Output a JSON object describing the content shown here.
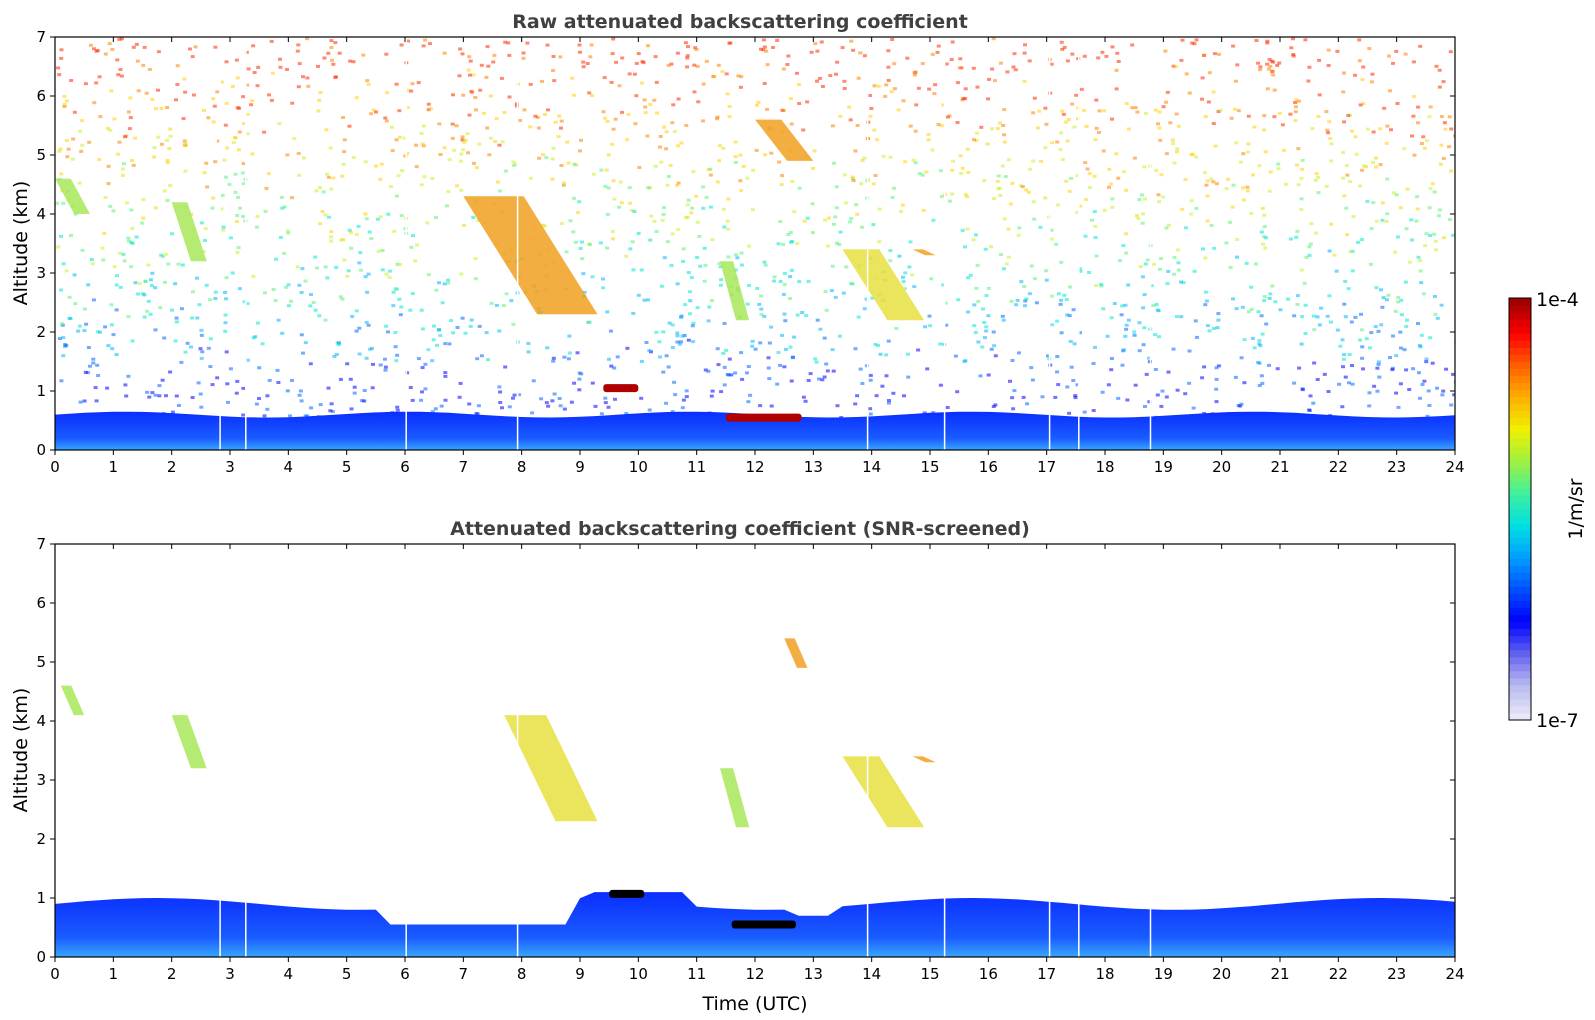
{
  "chart_data": [
    {
      "type": "heatmap",
      "panel": "raw",
      "title": "Raw attenuated backscattering coefficient",
      "xlabel": "",
      "ylabel": "Altitude (km)",
      "xlim": [
        0,
        24
      ],
      "ylim": [
        0,
        7
      ],
      "xticks": [
        0,
        1,
        2,
        3,
        4,
        5,
        6,
        7,
        8,
        9,
        10,
        11,
        12,
        13,
        14,
        15,
        16,
        17,
        18,
        19,
        20,
        21,
        22,
        23,
        24
      ],
      "yticks": [
        0,
        1,
        2,
        3,
        4,
        5,
        6,
        7
      ],
      "gap_lines_hours": [
        2.83,
        3.27,
        6.02,
        7.93,
        13.93,
        15.25,
        17.05,
        17.55,
        18.78
      ],
      "features": [
        {
          "kind": "boundary_layer",
          "altitude_top_km": 0.6,
          "level": "blue"
        },
        {
          "kind": "cloud",
          "t": [
            9.4,
            10.0
          ],
          "alt_km": 1.05,
          "level": "dark-red"
        },
        {
          "kind": "cloud",
          "t": [
            11.5,
            12.8
          ],
          "alt_km": 0.55,
          "level": "dark-red"
        },
        {
          "kind": "aerosol_streak",
          "t": [
            0.0,
            0.6
          ],
          "alt_km": [
            4.0,
            4.6
          ],
          "level": "yellow-green"
        },
        {
          "kind": "aerosol_streak",
          "t": [
            2.0,
            2.6
          ],
          "alt_km": [
            3.2,
            4.2
          ],
          "level": "yellow-green"
        },
        {
          "kind": "aerosol_streak",
          "t": [
            7.0,
            9.3
          ],
          "alt_km": [
            2.3,
            4.3
          ],
          "level": "orange"
        },
        {
          "kind": "aerosol_streak",
          "t": [
            11.4,
            11.9
          ],
          "alt_km": [
            2.2,
            3.2
          ],
          "level": "yellow-green"
        },
        {
          "kind": "aerosol_streak",
          "t": [
            13.5,
            14.9
          ],
          "alt_km": [
            2.2,
            3.4
          ],
          "level": "yellow"
        },
        {
          "kind": "aerosol_streak",
          "t": [
            14.7,
            15.1
          ],
          "alt_km": [
            3.3,
            3.4
          ],
          "level": "orange"
        },
        {
          "kind": "aerosol_streak",
          "t": [
            12.0,
            13.0
          ],
          "alt_km": [
            4.9,
            5.6
          ],
          "level": "orange"
        }
      ]
    },
    {
      "type": "heatmap",
      "panel": "screened",
      "title": "Attenuated backscattering coefficient (SNR-screened)",
      "xlabel": "Time (UTC)",
      "ylabel": "Altitude (km)",
      "xlim": [
        0,
        24
      ],
      "ylim": [
        0,
        7
      ],
      "xticks": [
        0,
        1,
        2,
        3,
        4,
        5,
        6,
        7,
        8,
        9,
        10,
        11,
        12,
        13,
        14,
        15,
        16,
        17,
        18,
        19,
        20,
        21,
        22,
        23,
        24
      ],
      "yticks": [
        0,
        1,
        2,
        3,
        4,
        5,
        6,
        7
      ],
      "gap_lines_hours": [
        2.83,
        3.27,
        6.02,
        7.93,
        13.93,
        15.25,
        17.05,
        17.55,
        18.78
      ],
      "features": [
        {
          "kind": "boundary_layer",
          "altitude_top_km": 0.9,
          "level": "blue"
        },
        {
          "kind": "cloud",
          "t": [
            9.5,
            10.1
          ],
          "alt_km": 1.07,
          "level": "black"
        },
        {
          "kind": "cloud",
          "t": [
            11.6,
            12.7
          ],
          "alt_km": 0.55,
          "level": "black"
        },
        {
          "kind": "aerosol_streak",
          "t": [
            0.1,
            0.5
          ],
          "alt_km": [
            4.1,
            4.6
          ],
          "level": "yellow-green"
        },
        {
          "kind": "aerosol_streak",
          "t": [
            2.0,
            2.6
          ],
          "alt_km": [
            3.2,
            4.1
          ],
          "level": "yellow-green"
        },
        {
          "kind": "aerosol_streak",
          "t": [
            7.7,
            9.3
          ],
          "alt_km": [
            2.3,
            4.1
          ],
          "level": "yellow"
        },
        {
          "kind": "aerosol_streak",
          "t": [
            11.4,
            11.9
          ],
          "alt_km": [
            2.2,
            3.2
          ],
          "level": "yellow-green"
        },
        {
          "kind": "aerosol_streak",
          "t": [
            13.5,
            14.9
          ],
          "alt_km": [
            2.2,
            3.4
          ],
          "level": "yellow"
        },
        {
          "kind": "aerosol_streak",
          "t": [
            14.7,
            15.1
          ],
          "alt_km": [
            3.3,
            3.4
          ],
          "level": "orange"
        },
        {
          "kind": "aerosol_streak",
          "t": [
            12.5,
            12.9
          ],
          "alt_km": [
            4.9,
            5.4
          ],
          "level": "orange"
        }
      ]
    }
  ],
  "colorbar": {
    "label": "1/m/sr",
    "min_label": "1e-7",
    "max_label": "1e-4",
    "scale": "log",
    "colormap": "jet-like",
    "stops": [
      "#e8e8f8",
      "#b8b8f0",
      "#6060f0",
      "#0000ff",
      "#0050ff",
      "#00a0ff",
      "#00e0e0",
      "#40f0a0",
      "#a0f040",
      "#f0f000",
      "#ffb000",
      "#ff6000",
      "#ff0000",
      "#a00000"
    ]
  },
  "colors": {
    "boundary_low": "#0a2dff",
    "boundary_high": "#39a6ff",
    "noise": [
      "#0000ff",
      "#0066ff",
      "#00b4ff",
      "#00e6d0",
      "#5af07a",
      "#c8f02a",
      "#ffd000",
      "#ff8000",
      "#ff2a00"
    ]
  }
}
